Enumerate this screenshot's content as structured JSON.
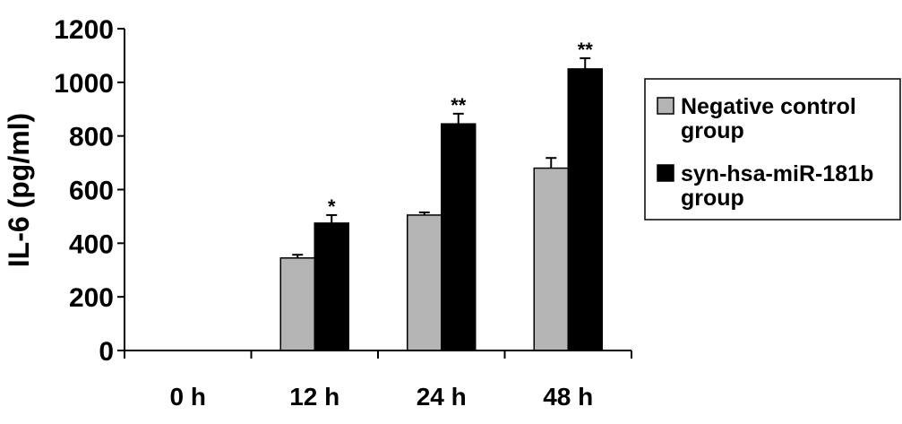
{
  "chart_data": {
    "type": "bar",
    "categories": [
      "0 h",
      "12 h",
      "24 h",
      "48 h"
    ],
    "ylabel": "IL-6 (pg/ml)",
    "xlabel": "",
    "ylim": [
      0,
      1200
    ],
    "yticks": [
      "0",
      "200",
      "400",
      "600",
      "800",
      "1000",
      "1200"
    ],
    "grid": false,
    "legend_position": "right",
    "series": [
      {
        "name": "Negative control group",
        "legend_lines": [
          "Negative control",
          "group"
        ],
        "color": "#b4b4b4",
        "values": [
          0,
          345,
          505,
          680
        ],
        "errors": [
          0,
          12,
          10,
          38
        ]
      },
      {
        "name": "syn-hsa-miR-181b group",
        "legend_lines": [
          "syn-hsa-miR-181b",
          "group"
        ],
        "color": "#000000",
        "values": [
          0,
          475,
          845,
          1050
        ],
        "errors": [
          0,
          30,
          38,
          40
        ]
      }
    ],
    "annotations": [
      {
        "category": "12 h",
        "series": 1,
        "text": "*"
      },
      {
        "category": "24 h",
        "series": 1,
        "text": "**"
      },
      {
        "category": "48 h",
        "series": 1,
        "text": "**"
      }
    ]
  }
}
